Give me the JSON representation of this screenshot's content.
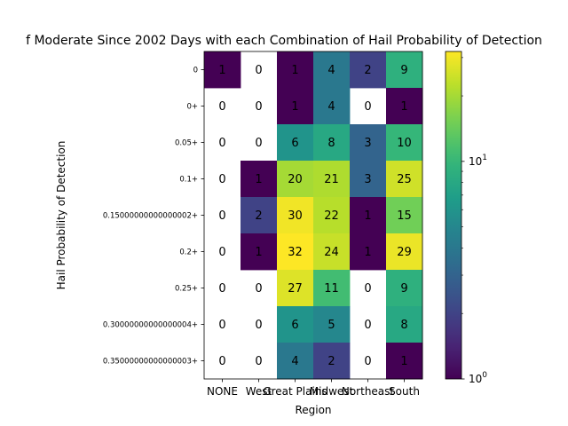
{
  "chart_data": {
    "type": "heatmap",
    "title": "f Moderate Since 2002 Days with each Combination of Hail Probability of Detection",
    "xlabel": "Region",
    "ylabel": "Hail Probability of Detection",
    "x_categories": [
      "NONE",
      "West",
      "Great Plains",
      "Midwest",
      "Northeast",
      "South"
    ],
    "y_categories": [
      "0",
      "0+",
      "0.05+",
      "0.1+",
      "0.15000000000000002+",
      "0.2+",
      "0.25+",
      "0.30000000000000004+",
      "0.35000000000000003+"
    ],
    "values": [
      [
        1,
        0,
        1,
        4,
        2,
        9
      ],
      [
        0,
        0,
        1,
        4,
        0,
        1
      ],
      [
        0,
        0,
        6,
        8,
        3,
        10
      ],
      [
        0,
        1,
        20,
        21,
        3,
        25
      ],
      [
        0,
        2,
        30,
        22,
        1,
        15
      ],
      [
        0,
        1,
        32,
        24,
        1,
        29
      ],
      [
        0,
        0,
        27,
        11,
        0,
        9
      ],
      [
        0,
        0,
        6,
        5,
        0,
        8
      ],
      [
        0,
        0,
        4,
        2,
        0,
        1
      ]
    ],
    "colormap": "viridis",
    "color_scale": "log",
    "color_range": [
      1,
      32
    ],
    "colorbar_ticks": [
      {
        "value": 1,
        "label": "10",
        "exp": "0"
      },
      {
        "value": 10,
        "label": "10",
        "exp": "1"
      }
    ],
    "zero_cells": "blank"
  }
}
